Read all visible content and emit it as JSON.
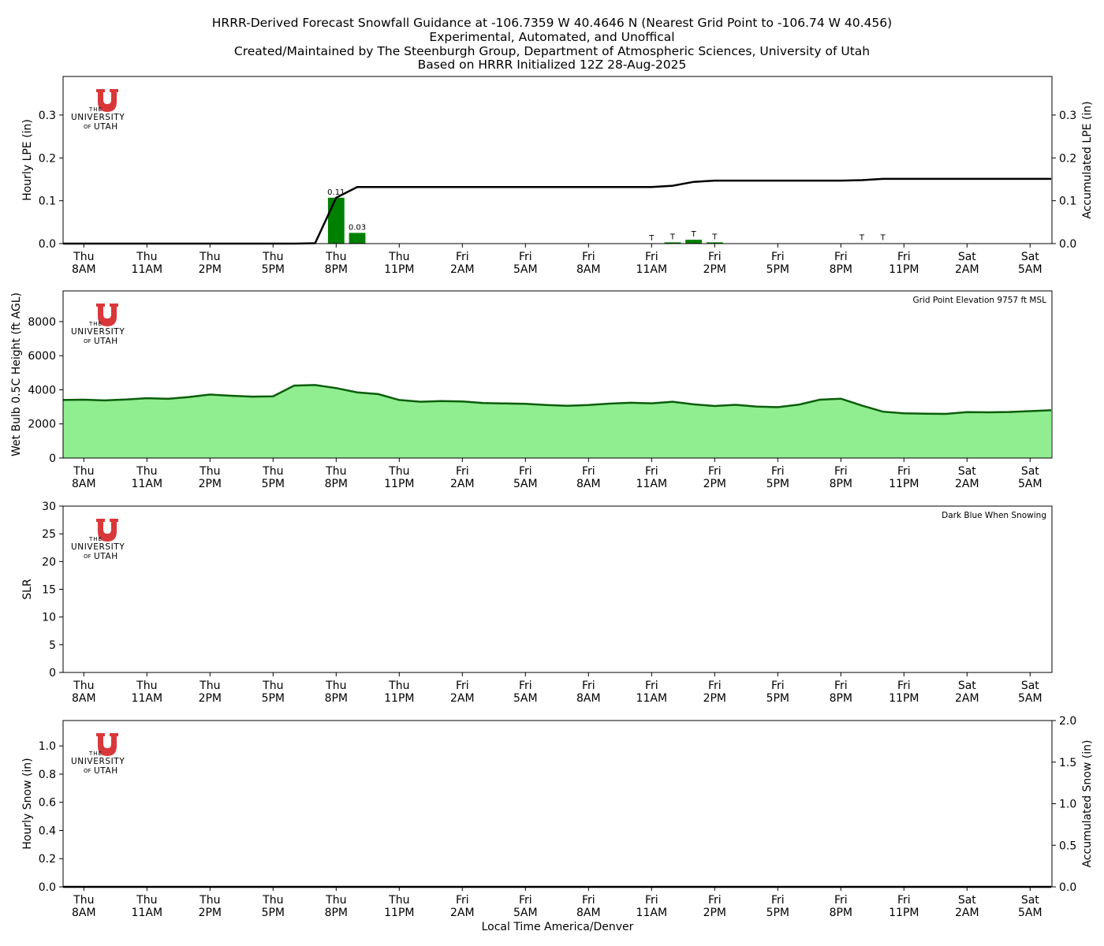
{
  "title_lines": [
    "HRRR-Derived Forecast Snowfall Guidance at -106.7359 W 40.4646 N (Nearest Grid Point to -106.74 W 40.456)",
    "Experimental, Automated, and Unoffical",
    "Created/Maintained by The Steenburgh Group, Department of Atmospheric Sciences, University of Utah",
    "Based on HRRR Initialized 12Z 28-Aug-2025"
  ],
  "xlabel": "Local Time America/Denver",
  "logo": {
    "letter": "U",
    "line1": "THE",
    "line2": "UNIVERSITY",
    "line3_small": "OF",
    "line3": "UTAH",
    "color": "#d9383a"
  },
  "colors": {
    "bar": "#008000",
    "line": "#000000",
    "area_fill": "#90ee90",
    "area_line": "#0b5e0b"
  },
  "chart_data": [
    {
      "type": "bar",
      "title": "",
      "ylabel": "Hourly LPE (in)",
      "ylabel_right": "Accumulated LPE (in)",
      "ylim": [
        0,
        0.39
      ],
      "ylim_right": [
        0,
        0.39
      ],
      "yticks": [
        0.0,
        0.1,
        0.2,
        0.3
      ],
      "yticks_right": [
        0.0,
        0.1,
        0.2,
        0.3
      ],
      "x_hours_from_start": [
        0,
        47
      ],
      "xtick_labels": [
        [
          "Thu",
          "8AM"
        ],
        [
          "Thu",
          "11AM"
        ],
        [
          "Thu",
          "2PM"
        ],
        [
          "Thu",
          "5PM"
        ],
        [
          "Thu",
          "8PM"
        ],
        [
          "Thu",
          "11PM"
        ],
        [
          "Fri",
          "2AM"
        ],
        [
          "Fri",
          "5AM"
        ],
        [
          "Fri",
          "8AM"
        ],
        [
          "Fri",
          "11AM"
        ],
        [
          "Fri",
          "2PM"
        ],
        [
          "Fri",
          "5PM"
        ],
        [
          "Fri",
          "8PM"
        ],
        [
          "Fri",
          "11PM"
        ],
        [
          "Sat",
          "2AM"
        ],
        [
          "Sat",
          "5AM"
        ]
      ],
      "series": [
        {
          "type": "bar",
          "values": [
            0,
            0,
            0,
            0,
            0,
            0,
            0,
            0,
            0,
            0,
            0,
            0,
            0,
            0.107,
            0.025,
            0,
            0,
            0,
            0,
            0,
            0,
            0,
            0,
            0,
            0,
            0,
            0,
            0,
            0,
            0.003,
            0.009,
            0.003,
            0,
            0,
            0,
            0,
            0,
            0,
            0.001,
            0.001,
            0,
            0,
            0,
            0,
            0,
            0,
            0,
            0
          ],
          "labels": [
            null,
            null,
            null,
            null,
            null,
            null,
            null,
            null,
            null,
            null,
            null,
            null,
            null,
            "0.11",
            "0.03",
            null,
            null,
            null,
            null,
            null,
            null,
            null,
            null,
            null,
            null,
            null,
            null,
            null,
            "T",
            "T",
            "T",
            "T",
            null,
            null,
            null,
            null,
            null,
            null,
            "T",
            "T",
            null,
            null,
            null,
            null,
            null,
            null,
            null,
            null
          ]
        },
        {
          "type": "line",
          "axis": "right",
          "values": [
            0,
            0,
            0,
            0,
            0,
            0,
            0,
            0,
            0,
            0,
            0,
            0,
            0.001,
            0.107,
            0.132,
            0.132,
            0.132,
            0.132,
            0.132,
            0.132,
            0.132,
            0.132,
            0.132,
            0.132,
            0.132,
            0.132,
            0.132,
            0.132,
            0.132,
            0.135,
            0.144,
            0.147,
            0.147,
            0.147,
            0.147,
            0.147,
            0.147,
            0.147,
            0.148,
            0.151,
            0.151,
            0.151,
            0.151,
            0.151,
            0.151,
            0.151,
            0.151,
            0.151
          ]
        }
      ]
    },
    {
      "type": "area",
      "title": "",
      "ylabel": "Wet Bulb 0.5C Height (ft AGL)",
      "annotation": "Grid Point Elevation 9757 ft MSL",
      "ylim": [
        0,
        9800
      ],
      "yticks": [
        0,
        2000,
        4000,
        6000,
        8000
      ],
      "x_hours_from_start": [
        0,
        47
      ],
      "values": [
        3400,
        3420,
        3380,
        3430,
        3510,
        3470,
        3580,
        3720,
        3650,
        3600,
        3620,
        4250,
        4280,
        4100,
        3850,
        3750,
        3400,
        3300,
        3340,
        3320,
        3220,
        3200,
        3180,
        3110,
        3060,
        3110,
        3190,
        3240,
        3210,
        3300,
        3150,
        3050,
        3120,
        3020,
        2980,
        3130,
        3420,
        3480,
        3080,
        2720,
        2620,
        2600,
        2590,
        2690,
        2680,
        2700,
        2750,
        2800
      ]
    },
    {
      "type": "line",
      "title": "",
      "ylabel": "SLR",
      "annotation": "Dark Blue When Snowing",
      "ylim": [
        0,
        30
      ],
      "yticks": [
        0,
        5,
        10,
        15,
        20,
        25,
        30
      ],
      "x_hours_from_start": [
        0,
        47
      ],
      "values": []
    },
    {
      "type": "bar",
      "title": "",
      "ylabel": "Hourly Snow (in)",
      "ylabel_right": "Accumulated Snow (in)",
      "ylim": [
        0,
        1.18
      ],
      "ylim_right": [
        0,
        2.0
      ],
      "yticks": [
        0.0,
        0.2,
        0.4,
        0.6,
        0.8,
        1.0
      ],
      "yticks_right": [
        0.0,
        0.5,
        1.0,
        1.5,
        2.0
      ],
      "x_hours_from_start": [
        0,
        47
      ],
      "series": [
        {
          "type": "bar",
          "values": [
            0,
            0,
            0,
            0,
            0,
            0,
            0,
            0,
            0,
            0,
            0,
            0,
            0,
            0,
            0,
            0,
            0,
            0,
            0,
            0,
            0,
            0,
            0,
            0,
            0,
            0,
            0,
            0,
            0,
            0,
            0,
            0,
            0,
            0,
            0,
            0,
            0,
            0,
            0,
            0,
            0,
            0,
            0,
            0,
            0,
            0,
            0,
            0
          ]
        },
        {
          "type": "line",
          "axis": "right",
          "values": [
            0,
            0,
            0,
            0,
            0,
            0,
            0,
            0,
            0,
            0,
            0,
            0,
            0,
            0,
            0,
            0,
            0,
            0,
            0,
            0,
            0,
            0,
            0,
            0,
            0,
            0,
            0,
            0,
            0,
            0,
            0,
            0,
            0,
            0,
            0,
            0,
            0,
            0,
            0,
            0,
            0,
            0,
            0,
            0,
            0,
            0,
            0,
            0
          ]
        }
      ]
    }
  ]
}
